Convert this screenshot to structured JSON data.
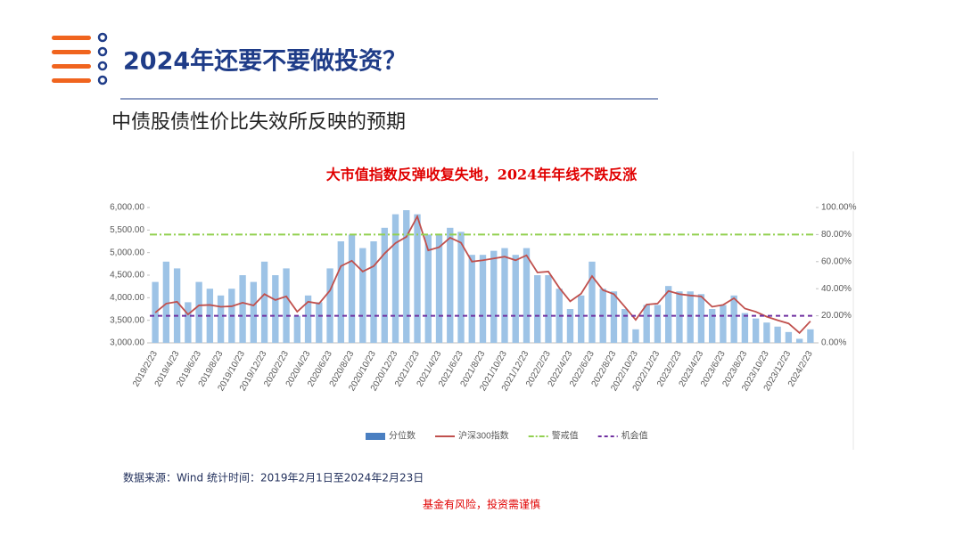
{
  "header": {
    "title": "2024年还要不要做投资？",
    "subtitle": "中债股债性价比失效所反映的预期"
  },
  "chart_data": {
    "type": "bar-line",
    "title": "大市值指数反弹收复失地，2024年年线不跌反涨",
    "categories": [
      "2019/2/23",
      null,
      "2019/4/23",
      null,
      "2019/6/23",
      null,
      "2019/8/23",
      null,
      "2019/10/23",
      null,
      "2019/12/23",
      null,
      "2020/2/23",
      null,
      "2020/4/23",
      null,
      "2020/6/23",
      null,
      "2020/8/23",
      null,
      "2020/10/23",
      null,
      "2020/12/23",
      null,
      "2021/2/23",
      null,
      "2021/4/23",
      null,
      "2021/6/23",
      null,
      "2021/8/23",
      null,
      "2021/10/23",
      null,
      "2021/12/23",
      null,
      "2022/2/23",
      null,
      "2022/4/23",
      null,
      "2022/6/23",
      null,
      "2022/8/23",
      null,
      "2022/10/23",
      null,
      "2022/12/23",
      null,
      "2023/2/23",
      null,
      "2023/4/23",
      null,
      "2023/6/23",
      null,
      "2023/8/23",
      null,
      "2023/10/23",
      null,
      "2023/12/23",
      null,
      "2024/2/23"
    ],
    "series": [
      {
        "name": "分位数",
        "color": "#9dc3e6",
        "axis": "y2",
        "values": [
          45,
          60,
          55,
          30,
          45,
          40,
          35,
          40,
          50,
          45,
          60,
          50,
          55,
          20,
          35,
          30,
          55,
          75,
          80,
          70,
          75,
          85,
          95,
          98,
          95,
          80,
          80,
          85,
          82,
          65,
          65,
          68,
          70,
          65,
          70,
          50,
          50,
          40,
          25,
          35,
          60,
          40,
          38,
          25,
          10,
          28,
          28,
          42,
          38,
          38,
          36,
          25,
          28,
          35,
          22,
          18,
          15,
          12,
          8,
          3,
          10
        ]
      },
      {
        "name": "沪深300指数",
        "color": "#c0504d",
        "values": [
          3670,
          3870,
          3910,
          3630,
          3830,
          3840,
          3800,
          3810,
          3890,
          3830,
          4080,
          3950,
          4030,
          3690,
          3910,
          3870,
          4160,
          4700,
          4820,
          4580,
          4700,
          4980,
          5210,
          5350,
          5800,
          5050,
          5120,
          5330,
          5220,
          4800,
          4830,
          4870,
          4910,
          4830,
          4940,
          4560,
          4580,
          4220,
          3920,
          4090,
          4480,
          4170,
          4080,
          3800,
          3510,
          3850,
          3870,
          4150,
          4080,
          4050,
          4030,
          3800,
          3840,
          3990,
          3760,
          3690,
          3580,
          3500,
          3430,
          3220,
          3480
        ]
      }
    ],
    "reference_lines": [
      {
        "name": "警戒值",
        "value": 80,
        "color": "#92d050",
        "axis": "y2",
        "style": "dash-dot"
      },
      {
        "name": "机会值",
        "value": 20,
        "color": "#7030a0",
        "axis": "y2",
        "style": "dashed"
      }
    ],
    "ylim": [
      3000,
      6000
    ],
    "yticks": [
      {
        "value": 3000,
        "label": "3,000.00"
      },
      {
        "value": 3500,
        "label": "3,500.00"
      },
      {
        "value": 4000,
        "label": "4,000.00"
      },
      {
        "value": 4500,
        "label": "4,500.00"
      },
      {
        "value": 5000,
        "label": "5,000.00"
      },
      {
        "value": 5500,
        "label": "5,500.00"
      },
      {
        "value": 6000,
        "label": "6,000.00"
      }
    ],
    "y2lim": [
      0,
      100
    ],
    "y2ticks": [
      {
        "value": 0,
        "label": "0.00%"
      },
      {
        "value": 20,
        "label": "20.00%"
      },
      {
        "value": 40,
        "label": "40.00%"
      },
      {
        "value": 60,
        "label": "60.00%"
      },
      {
        "value": 80,
        "label": "80.00%"
      },
      {
        "value": 100,
        "label": "100.00%"
      }
    ],
    "legend": "bottom"
  },
  "footer": {
    "source": "数据来源：Wind 统计时间：2019年2月1日至2024年2月23日",
    "disclaimer": "基金有风险，投资需谨慎"
  }
}
